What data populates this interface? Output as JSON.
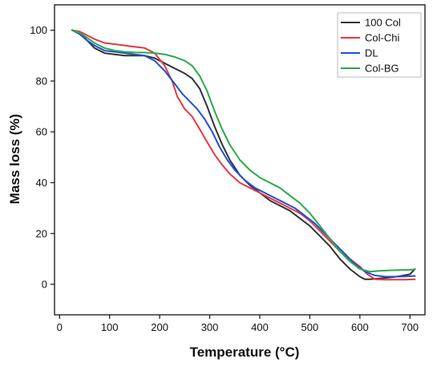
{
  "chart_data": {
    "type": "line",
    "title": "",
    "xlabel": "Temperature (°C)",
    "ylabel": "Mass loss (%)",
    "xlim": [
      -10,
      730
    ],
    "ylim": [
      -12,
      110
    ],
    "xticks": [
      0,
      100,
      200,
      300,
      400,
      500,
      600,
      700
    ],
    "yticks": [
      0,
      20,
      40,
      60,
      80,
      100
    ],
    "grid": false,
    "legend_position": "top-right",
    "series": [
      {
        "name": "100 Col",
        "color": "#333333",
        "points": [
          [
            25,
            100
          ],
          [
            40,
            99
          ],
          [
            55,
            96
          ],
          [
            70,
            93
          ],
          [
            90,
            91
          ],
          [
            110,
            90.5
          ],
          [
            130,
            90
          ],
          [
            150,
            90
          ],
          [
            170,
            90
          ],
          [
            190,
            89
          ],
          [
            210,
            87
          ],
          [
            230,
            85
          ],
          [
            250,
            83
          ],
          [
            265,
            81
          ],
          [
            280,
            77
          ],
          [
            295,
            70
          ],
          [
            310,
            62
          ],
          [
            325,
            55
          ],
          [
            340,
            49
          ],
          [
            360,
            43
          ],
          [
            380,
            39
          ],
          [
            400,
            36
          ],
          [
            420,
            33
          ],
          [
            440,
            31
          ],
          [
            460,
            29
          ],
          [
            480,
            26
          ],
          [
            500,
            23
          ],
          [
            520,
            19
          ],
          [
            540,
            15
          ],
          [
            560,
            10
          ],
          [
            580,
            6
          ],
          [
            600,
            3
          ],
          [
            610,
            2
          ],
          [
            620,
            2
          ],
          [
            640,
            2.3
          ],
          [
            660,
            2.7
          ],
          [
            680,
            3.2
          ],
          [
            700,
            4
          ],
          [
            710,
            6
          ]
        ]
      },
      {
        "name": "Col-Chi",
        "color": "#e8383d",
        "points": [
          [
            25,
            100
          ],
          [
            40,
            99.5
          ],
          [
            55,
            98
          ],
          [
            70,
            96.5
          ],
          [
            90,
            95
          ],
          [
            110,
            94.5
          ],
          [
            130,
            94
          ],
          [
            150,
            93.5
          ],
          [
            170,
            93
          ],
          [
            190,
            91
          ],
          [
            210,
            86
          ],
          [
            225,
            80
          ],
          [
            235,
            74
          ],
          [
            250,
            69
          ],
          [
            265,
            66
          ],
          [
            280,
            61
          ],
          [
            295,
            56
          ],
          [
            310,
            51
          ],
          [
            325,
            47
          ],
          [
            340,
            43.5
          ],
          [
            360,
            40
          ],
          [
            380,
            38
          ],
          [
            400,
            36
          ],
          [
            420,
            34
          ],
          [
            440,
            32
          ],
          [
            460,
            30
          ],
          [
            480,
            28
          ],
          [
            500,
            25
          ],
          [
            520,
            21
          ],
          [
            540,
            17
          ],
          [
            560,
            13
          ],
          [
            580,
            10
          ],
          [
            600,
            7
          ],
          [
            615,
            4
          ],
          [
            630,
            2
          ],
          [
            650,
            1.8
          ],
          [
            670,
            1.8
          ],
          [
            690,
            1.8
          ],
          [
            710,
            2
          ]
        ]
      },
      {
        "name": "DL",
        "color": "#1f4fd6",
        "points": [
          [
            25,
            100
          ],
          [
            40,
            98.5
          ],
          [
            55,
            96
          ],
          [
            70,
            94
          ],
          [
            90,
            92
          ],
          [
            110,
            91.5
          ],
          [
            130,
            91
          ],
          [
            150,
            90.5
          ],
          [
            170,
            90
          ],
          [
            190,
            88
          ],
          [
            210,
            84
          ],
          [
            230,
            79
          ],
          [
            245,
            75
          ],
          [
            260,
            72
          ],
          [
            275,
            69
          ],
          [
            290,
            65
          ],
          [
            305,
            60
          ],
          [
            320,
            54
          ],
          [
            335,
            49
          ],
          [
            350,
            45
          ],
          [
            370,
            41
          ],
          [
            390,
            38
          ],
          [
            410,
            36
          ],
          [
            430,
            34
          ],
          [
            450,
            32
          ],
          [
            470,
            30
          ],
          [
            490,
            27
          ],
          [
            510,
            24
          ],
          [
            530,
            20
          ],
          [
            550,
            16
          ],
          [
            570,
            12
          ],
          [
            590,
            8
          ],
          [
            610,
            5
          ],
          [
            630,
            3.5
          ],
          [
            650,
            3
          ],
          [
            670,
            3
          ],
          [
            690,
            3.1
          ],
          [
            710,
            3.3
          ]
        ]
      },
      {
        "name": "Col-BG",
        "color": "#2aaa4a",
        "points": [
          [
            25,
            100
          ],
          [
            40,
            99
          ],
          [
            55,
            97
          ],
          [
            70,
            95
          ],
          [
            90,
            93
          ],
          [
            110,
            92
          ],
          [
            130,
            91.5
          ],
          [
            150,
            91.3
          ],
          [
            170,
            91.2
          ],
          [
            190,
            91
          ],
          [
            210,
            90.5
          ],
          [
            230,
            89.5
          ],
          [
            250,
            88
          ],
          [
            265,
            86
          ],
          [
            280,
            82
          ],
          [
            295,
            76
          ],
          [
            310,
            68
          ],
          [
            325,
            61
          ],
          [
            340,
            55
          ],
          [
            360,
            49
          ],
          [
            380,
            45
          ],
          [
            400,
            42
          ],
          [
            420,
            40
          ],
          [
            440,
            38
          ],
          [
            460,
            35
          ],
          [
            480,
            32
          ],
          [
            500,
            28
          ],
          [
            520,
            23
          ],
          [
            540,
            18
          ],
          [
            560,
            13
          ],
          [
            580,
            9
          ],
          [
            600,
            6
          ],
          [
            620,
            5
          ],
          [
            640,
            5.3
          ],
          [
            660,
            5.5
          ],
          [
            680,
            5.6
          ],
          [
            700,
            5.7
          ],
          [
            710,
            5.9
          ]
        ]
      }
    ]
  }
}
